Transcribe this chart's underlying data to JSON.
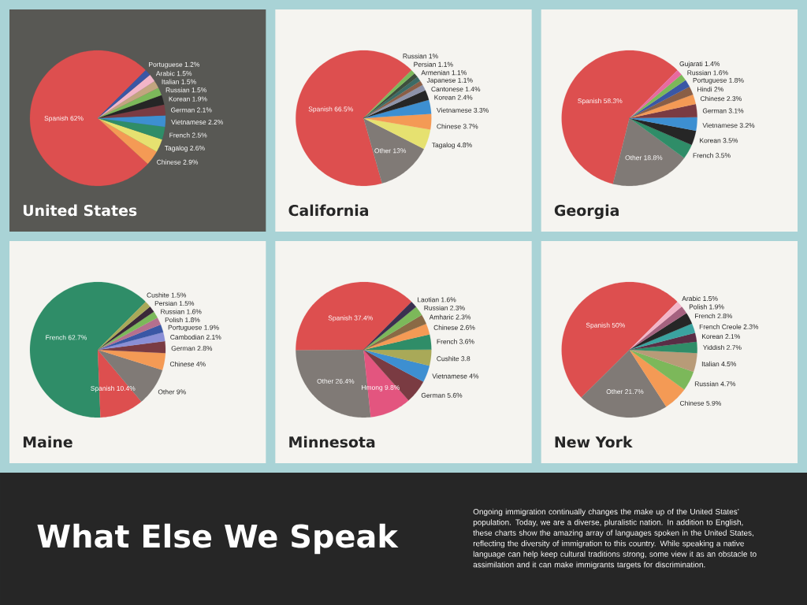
{
  "chart_data": [
    {
      "type": "pie",
      "title": "United States",
      "categories": [
        "Spanish",
        "Chinese",
        "Tagalog",
        "French",
        "Vietnamese",
        "German",
        "Korean",
        "Russian",
        "Italian",
        "Arabic",
        "Portuguese"
      ],
      "values": [
        62,
        2.9,
        2.6,
        2.5,
        2.2,
        2.1,
        1.9,
        1.5,
        1.5,
        1.5,
        1.2
      ],
      "value_labels": [
        "62%",
        "2.9%",
        "2.6%",
        "2.5%",
        "2.2%",
        "2.1%",
        "1.9%",
        "1.5%",
        "1.5%",
        "1.5%",
        "1.2%"
      ],
      "colors": [
        "#dd4f4f",
        "#f49a55",
        "#e6e170",
        "#2f8d68",
        "#3d8fd1",
        "#7a3b42",
        "#262626",
        "#7cb85a",
        "#c2a57f",
        "#f2b5c8",
        "#3a57a5"
      ]
    },
    {
      "type": "pie",
      "title": "California",
      "categories": [
        "Spanish",
        "Other",
        "Tagalog",
        "Chinese",
        "Vietnamese",
        "Korean",
        "Cantonese",
        "Japanese",
        "Armenian",
        "Persian",
        "Russian"
      ],
      "values": [
        66.5,
        13,
        4.8,
        3.7,
        3.3,
        2.4,
        1.4,
        1.1,
        1.1,
        1.1,
        1
      ],
      "value_labels": [
        "66.5%",
        "13%",
        "4.8%",
        "3.7%",
        "3.3%",
        "2.4%",
        "1.4%",
        "1.1%",
        "1.1%",
        "1.1%",
        "1%"
      ],
      "colors": [
        "#dd4f4f",
        "#807a76",
        "#e6e170",
        "#f49a55",
        "#3d8fd1",
        "#262626",
        "#8d93aa",
        "#8a5e46",
        "#3b6b66",
        "#3d4f3d",
        "#7cb85a"
      ]
    },
    {
      "type": "pie",
      "title": "Georgia",
      "categories": [
        "Spanish",
        "Other",
        "French",
        "Korean",
        "Vietnamese",
        "German",
        "Chinese",
        "Hindi",
        "Portuguese",
        "Russian",
        "Gujarati"
      ],
      "values": [
        58.3,
        18.8,
        3.5,
        3.5,
        3.2,
        3.1,
        2.3,
        2,
        1.8,
        1.6,
        1.4
      ],
      "value_labels": [
        "58.3%",
        "18.8%",
        "3.5%",
        "3.5%",
        "3.2%",
        "3.1%",
        "2.3%",
        "2%",
        "1.8%",
        "1.6%",
        "1.4%"
      ],
      "colors": [
        "#dd4f4f",
        "#807a76",
        "#2f8d68",
        "#262626",
        "#3d8fd1",
        "#7a3b42",
        "#f49a55",
        "#8a5e46",
        "#3a57a5",
        "#7cb85a",
        "#e86aa0"
      ]
    },
    {
      "type": "pie",
      "title": "Maine",
      "categories": [
        "French",
        "Spanish",
        "Other",
        "Chinese",
        "German",
        "Cambodian",
        "Portuguese",
        "Polish",
        "Russian",
        "Persian",
        "Cushite"
      ],
      "values": [
        62.7,
        10.4,
        9,
        4,
        2.8,
        2.1,
        1.9,
        1.8,
        1.6,
        1.5,
        1.5
      ],
      "value_labels": [
        "62.7%",
        "10.4%",
        "9%",
        "4%",
        "2.8%",
        "2.1%",
        "1.9%",
        "1.8%",
        "1.6%",
        "1.5%",
        "1.5%"
      ],
      "colors": [
        "#2f8d68",
        "#dd4f4f",
        "#807a76",
        "#f49a55",
        "#7a3b42",
        "#8a8fd6",
        "#3a57a5",
        "#b5708e",
        "#7cb85a",
        "#3a2838",
        "#a9a958"
      ]
    },
    {
      "type": "pie",
      "title": "Minnesota",
      "categories": [
        "Spanish",
        "Other",
        "Hmong",
        "German",
        "Vietnamese",
        "Cushite",
        "French",
        "Chinese",
        "Amharic",
        "Russian",
        "Laotian"
      ],
      "values": [
        37.4,
        26.4,
        9.8,
        5.6,
        4,
        3.8,
        3.6,
        2.6,
        2.3,
        2.3,
        1.6
      ],
      "value_labels": [
        "37.4%",
        "26.4%",
        "9.8%",
        "5.6%",
        "4%",
        "3.8",
        "3.6%",
        "2.6%",
        "2.3%",
        "2.3%",
        "1.6%"
      ],
      "colors": [
        "#dd4f4f",
        "#807a76",
        "#e3557f",
        "#7a3b42",
        "#3d8fd1",
        "#a9a958",
        "#2f8d68",
        "#f49a55",
        "#8a6a45",
        "#7cb85a",
        "#3a3050"
      ]
    },
    {
      "type": "pie",
      "title": "New York",
      "categories": [
        "Spanish",
        "Other",
        "Chinese",
        "Russian",
        "Italian",
        "Yiddish",
        "Korean",
        "French Creole",
        "French",
        "Polish",
        "Arabic"
      ],
      "values": [
        50,
        21.7,
        5.9,
        4.7,
        4.5,
        2.7,
        2.1,
        2.3,
        2.8,
        1.9,
        1.5
      ],
      "value_labels": [
        "50%",
        "21.7%",
        "5.9%",
        "4.7%",
        "4.5%",
        "2.7%",
        "2.1%",
        "2.3%",
        "2.8%",
        "1.9%",
        "1.5%"
      ],
      "colors": [
        "#dd4f4f",
        "#807a76",
        "#f49a55",
        "#7cb85a",
        "#b89b78",
        "#2f8d68",
        "#5a2d45",
        "#3aa3a0",
        "#262626",
        "#a5627f",
        "#f2b5c8"
      ]
    },
    {
      "type": "other",
      "title": "What Else We Speak",
      "annotations": [
        "Ongoing immigration continually changes the make up of the United States’ population. Today, we are a diverse, pluralistic nation. In addition to English, these charts show the amazing array of languages spoken in the United States, reflecting the diversity of immigration to this country. While speaking a native language can help keep cultural traditions strong, some view it as an obstacle to assimilation and it can make immigrants targets for discrimination."
      ]
    }
  ]
}
